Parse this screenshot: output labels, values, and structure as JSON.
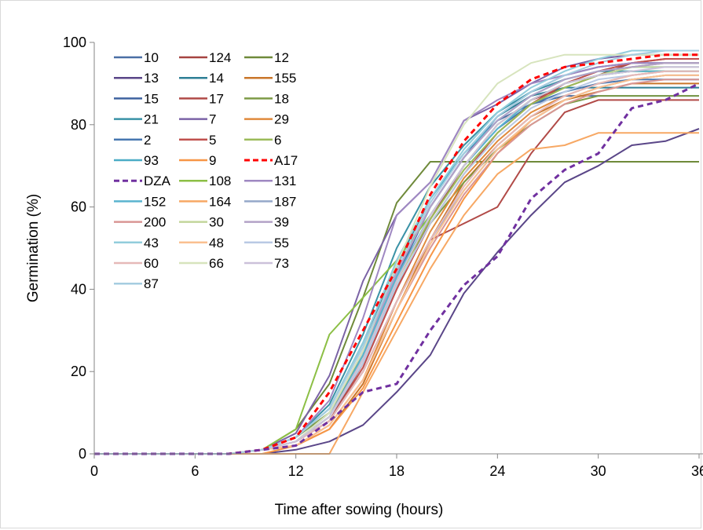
{
  "chart_data": {
    "type": "line",
    "title": "",
    "xlabel": "Time after sowing (hours)",
    "ylabel": "Germination (%)",
    "xlim": [
      0,
      36
    ],
    "ylim": [
      0,
      100
    ],
    "xticks": [
      0,
      6,
      12,
      18,
      24,
      30,
      36
    ],
    "yticks": [
      0,
      20,
      40,
      60,
      80,
      100
    ],
    "x_tick_labels": [
      "0",
      "6",
      "12",
      "18",
      "24",
      "30",
      "36"
    ],
    "y_tick_labels": [
      "0",
      "20",
      "40",
      "60",
      "80",
      "100"
    ],
    "grid": false,
    "legend_position": "top-left, 3 columns",
    "x": [
      0,
      2,
      4,
      6,
      8,
      10,
      12,
      14,
      16,
      18,
      20,
      22,
      24,
      26,
      28,
      30,
      32,
      34,
      36
    ],
    "series": [
      {
        "name": "10",
        "color": "#4a6fa5",
        "dash": false,
        "values": [
          0,
          0,
          0,
          0,
          0,
          1,
          3,
          9,
          24,
          43,
          60,
          72,
          81,
          85,
          87,
          87,
          87,
          87,
          87
        ]
      },
      {
        "name": "124",
        "color": "#a64441",
        "dash": false,
        "values": [
          0,
          0,
          0,
          0,
          0,
          1,
          3,
          8,
          22,
          40,
          57,
          70,
          80,
          86,
          89,
          92,
          95,
          96,
          96
        ]
      },
      {
        "name": "12",
        "color": "#6f8a3a",
        "dash": false,
        "values": [
          0,
          0,
          0,
          0,
          0,
          1,
          6,
          17,
          38,
          61,
          71,
          71,
          71,
          71,
          71,
          71,
          71,
          71,
          71
        ]
      },
      {
        "name": "13",
        "color": "#5a4688",
        "dash": false,
        "values": [
          0,
          0,
          0,
          0,
          0,
          0,
          1,
          3,
          7,
          15,
          24,
          39,
          49,
          58,
          66,
          70,
          75,
          76,
          79
        ]
      },
      {
        "name": "14",
        "color": "#2e7f95",
        "dash": false,
        "values": [
          0,
          0,
          0,
          0,
          0,
          1,
          4,
          11,
          27,
          46,
          62,
          73,
          82,
          87,
          89,
          89,
          89,
          89,
          89
        ]
      },
      {
        "name": "155",
        "color": "#c9762a",
        "dash": false,
        "values": [
          0,
          0,
          0,
          0,
          0,
          1,
          2,
          6,
          17,
          35,
          52,
          66,
          75,
          82,
          86,
          88,
          90,
          90,
          90
        ]
      },
      {
        "name": "15",
        "color": "#3f63a0",
        "dash": false,
        "values": [
          0,
          0,
          0,
          0,
          0,
          1,
          3,
          10,
          25,
          44,
          60,
          72,
          82,
          88,
          92,
          94,
          95,
          95,
          95
        ]
      },
      {
        "name": "17",
        "color": "#b14a47",
        "dash": false,
        "values": [
          0,
          0,
          0,
          0,
          0,
          1,
          3,
          8,
          20,
          37,
          52,
          56,
          60,
          73,
          83,
          86,
          86,
          86,
          86
        ]
      },
      {
        "name": "18",
        "color": "#7d9b46",
        "dash": false,
        "values": [
          0,
          0,
          0,
          0,
          0,
          1,
          4,
          10,
          24,
          41,
          56,
          66,
          74,
          80,
          85,
          87,
          87,
          87,
          87
        ]
      },
      {
        "name": "21",
        "color": "#3a92a6",
        "dash": false,
        "values": [
          0,
          0,
          0,
          0,
          0,
          1,
          4,
          12,
          29,
          50,
          65,
          75,
          83,
          88,
          91,
          93,
          93,
          93,
          93
        ]
      },
      {
        "name": "7",
        "color": "#7b63a6",
        "dash": false,
        "values": [
          0,
          0,
          0,
          0,
          0,
          1,
          5,
          19,
          42,
          58,
          66,
          81,
          85,
          90,
          94,
          96,
          97,
          97,
          97
        ]
      },
      {
        "name": "29",
        "color": "#e08a3c",
        "dash": false,
        "values": [
          0,
          0,
          0,
          0,
          0,
          1,
          2,
          7,
          18,
          37,
          54,
          67,
          76,
          83,
          87,
          90,
          92,
          93,
          93
        ]
      },
      {
        "name": "2",
        "color": "#4777b0",
        "dash": false,
        "values": [
          0,
          0,
          0,
          0,
          0,
          1,
          3,
          9,
          23,
          42,
          58,
          70,
          79,
          85,
          88,
          90,
          91,
          91,
          91
        ]
      },
      {
        "name": "5",
        "color": "#c0504d",
        "dash": false,
        "values": [
          0,
          0,
          0,
          0,
          0,
          1,
          3,
          8,
          21,
          40,
          56,
          68,
          78,
          85,
          90,
          93,
          95,
          96,
          96
        ]
      },
      {
        "name": "6",
        "color": "#9bbb59",
        "dash": false,
        "values": [
          0,
          0,
          0,
          0,
          0,
          1,
          3,
          9,
          23,
          42,
          57,
          69,
          78,
          85,
          89,
          92,
          94,
          95,
          95
        ]
      },
      {
        "name": "93",
        "color": "#4bacc6",
        "dash": false,
        "values": [
          0,
          0,
          0,
          0,
          0,
          1,
          4,
          11,
          27,
          47,
          62,
          73,
          81,
          87,
          91,
          93,
          94,
          94,
          94
        ]
      },
      {
        "name": "9",
        "color": "#f79646",
        "dash": false,
        "values": [
          0,
          0,
          0,
          0,
          0,
          0,
          2,
          6,
          16,
          32,
          48,
          62,
          73,
          81,
          86,
          89,
          91,
          92,
          92
        ]
      },
      {
        "name": "A17",
        "color": "#ff0000",
        "dash": true,
        "values": [
          0,
          0,
          0,
          0,
          0,
          1,
          4,
          15,
          30,
          45,
          63,
          76,
          85,
          91,
          94,
          95,
          96,
          97,
          97
        ]
      },
      {
        "name": "DZA",
        "color": "#7030a0",
        "dash": true,
        "values": [
          0,
          0,
          0,
          0,
          0,
          1,
          2,
          8,
          15,
          17,
          30,
          41,
          48,
          62,
          69,
          73,
          84,
          86,
          90
        ]
      },
      {
        "name": "108",
        "color": "#8cbf45",
        "dash": false,
        "values": [
          0,
          0,
          0,
          0,
          0,
          1,
          6,
          29,
          38,
          47,
          58,
          70,
          80,
          86,
          90,
          92,
          93,
          93,
          93
        ]
      },
      {
        "name": "131",
        "color": "#9f88c2",
        "dash": false,
        "values": [
          0,
          0,
          0,
          0,
          0,
          1,
          4,
          13,
          33,
          58,
          66,
          81,
          86,
          90,
          92,
          94,
          95,
          95,
          95
        ]
      },
      {
        "name": "152",
        "color": "#5ab4cf",
        "dash": false,
        "values": [
          0,
          0,
          0,
          0,
          0,
          1,
          3,
          9,
          24,
          43,
          58,
          70,
          79,
          86,
          90,
          92,
          93,
          93,
          93
        ]
      },
      {
        "name": "164",
        "color": "#f7a864",
        "dash": false,
        "values": [
          0,
          0,
          0,
          0,
          0,
          0,
          0,
          0,
          15,
          30,
          45,
          58,
          68,
          74,
          75,
          78,
          78,
          78,
          78
        ]
      },
      {
        "name": "187",
        "color": "#95a8c9",
        "dash": false,
        "values": [
          0,
          0,
          0,
          0,
          0,
          1,
          3,
          8,
          20,
          37,
          52,
          64,
          74,
          81,
          86,
          89,
          91,
          92,
          92
        ]
      },
      {
        "name": "200",
        "color": "#d99694",
        "dash": false,
        "values": [
          0,
          0,
          0,
          0,
          0,
          1,
          2,
          7,
          18,
          35,
          50,
          63,
          73,
          80,
          85,
          88,
          90,
          91,
          91
        ]
      },
      {
        "name": "30",
        "color": "#c3d69b",
        "dash": false,
        "values": [
          0,
          0,
          0,
          0,
          0,
          1,
          3,
          9,
          23,
          42,
          58,
          70,
          80,
          86,
          90,
          92,
          94,
          94,
          94
        ]
      },
      {
        "name": "39",
        "color": "#b3a2c7",
        "dash": false,
        "values": [
          0,
          0,
          0,
          0,
          0,
          1,
          3,
          10,
          25,
          44,
          60,
          72,
          81,
          87,
          91,
          93,
          94,
          95,
          95
        ]
      },
      {
        "name": "43",
        "color": "#92cddc",
        "dash": false,
        "values": [
          0,
          0,
          0,
          0,
          0,
          1,
          4,
          11,
          27,
          47,
          62,
          74,
          83,
          89,
          93,
          96,
          98,
          98,
          98
        ]
      },
      {
        "name": "48",
        "color": "#fac090",
        "dash": false,
        "values": [
          0,
          0,
          0,
          0,
          0,
          1,
          2,
          7,
          18,
          35,
          51,
          64,
          74,
          81,
          86,
          89,
          91,
          92,
          92
        ]
      },
      {
        "name": "55",
        "color": "#b9c9e4",
        "dash": false,
        "values": [
          0,
          0,
          0,
          0,
          0,
          1,
          3,
          9,
          22,
          41,
          56,
          68,
          77,
          84,
          88,
          91,
          92,
          93,
          93
        ]
      },
      {
        "name": "60",
        "color": "#e6b9b8",
        "dash": false,
        "values": [
          0,
          0,
          0,
          0,
          0,
          1,
          3,
          8,
          20,
          37,
          52,
          65,
          75,
          82,
          87,
          90,
          92,
          93,
          93
        ]
      },
      {
        "name": "66",
        "color": "#d7e4bd",
        "dash": false,
        "values": [
          0,
          0,
          0,
          0,
          0,
          1,
          3,
          10,
          25,
          46,
          65,
          80,
          90,
          95,
          97,
          97,
          97,
          97,
          97
        ]
      },
      {
        "name": "73",
        "color": "#ccc1da",
        "dash": false,
        "values": [
          0,
          0,
          0,
          0,
          0,
          1,
          3,
          9,
          23,
          42,
          58,
          70,
          80,
          86,
          90,
          92,
          93,
          94,
          94
        ]
      },
      {
        "name": "87",
        "color": "#a6cde0",
        "dash": false,
        "values": [
          0,
          0,
          0,
          0,
          0,
          1,
          4,
          11,
          26,
          45,
          61,
          73,
          82,
          88,
          92,
          95,
          97,
          98,
          98
        ]
      }
    ]
  }
}
